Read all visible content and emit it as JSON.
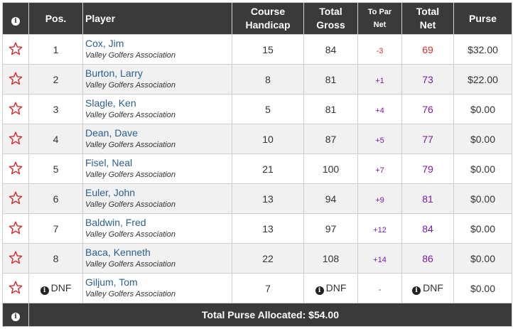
{
  "header": {
    "info_icon": "i",
    "pos": "Pos.",
    "player": "Player",
    "course_handicap_1": "Course",
    "course_handicap_2": "Handicap",
    "total_gross_1": "Total",
    "total_gross_2": "Gross",
    "to_par_net_1": "To Par",
    "to_par_net_2": "Net",
    "total_net_1": "Total",
    "total_net_2": "Net",
    "purse": "Purse"
  },
  "rows": [
    {
      "pos": "1",
      "name": "Cox, Jim",
      "club": "Valley Golfers Association",
      "handicap": "15",
      "gross": "84",
      "to_par": "-3",
      "net": "69",
      "purse": "$32.00"
    },
    {
      "pos": "2",
      "name": "Burton, Larry",
      "club": "Valley Golfers Association",
      "handicap": "8",
      "gross": "81",
      "to_par": "+1",
      "net": "73",
      "purse": "$22.00"
    },
    {
      "pos": "3",
      "name": "Slagle, Ken",
      "club": "Valley Golfers Association",
      "handicap": "5",
      "gross": "81",
      "to_par": "+4",
      "net": "76",
      "purse": "$0.00"
    },
    {
      "pos": "4",
      "name": "Dean, Dave",
      "club": "Valley Golfers Association",
      "handicap": "10",
      "gross": "87",
      "to_par": "+5",
      "net": "77",
      "purse": "$0.00"
    },
    {
      "pos": "5",
      "name": "Fisel, Neal",
      "club": "Valley Golfers Association",
      "handicap": "21",
      "gross": "100",
      "to_par": "+7",
      "net": "79",
      "purse": "$0.00"
    },
    {
      "pos": "6",
      "name": "Euler, John",
      "club": "Valley Golfers Association",
      "handicap": "13",
      "gross": "94",
      "to_par": "+9",
      "net": "81",
      "purse": "$0.00"
    },
    {
      "pos": "7",
      "name": "Baldwin, Fred",
      "club": "Valley Golfers Association",
      "handicap": "13",
      "gross": "97",
      "to_par": "+12",
      "net": "84",
      "purse": "$0.00"
    },
    {
      "pos": "8",
      "name": "Baca, Kenneth",
      "club": "Valley Golfers Association",
      "handicap": "22",
      "gross": "108",
      "to_par": "+14",
      "net": "86",
      "purse": "$0.00"
    },
    {
      "pos": "DNF",
      "name": "Giljum, Tom",
      "club": "Valley Golfers Association",
      "handicap": "7",
      "gross": "DNF",
      "to_par": "-",
      "net": "DNF",
      "purse": "$0.00"
    }
  ],
  "footer": {
    "info_icon": "i",
    "total_label": "Total Purse Allocated: $54.00"
  },
  "colors": {
    "header_bg": "#3a3a3a",
    "star": "#d32f2f",
    "name_link": "#2c5f91",
    "under_par": "#d32f2f",
    "over_par": "#7a1aa8"
  },
  "icons": {
    "favorite": "star-outline-icon",
    "info": "info-circle-icon"
  }
}
